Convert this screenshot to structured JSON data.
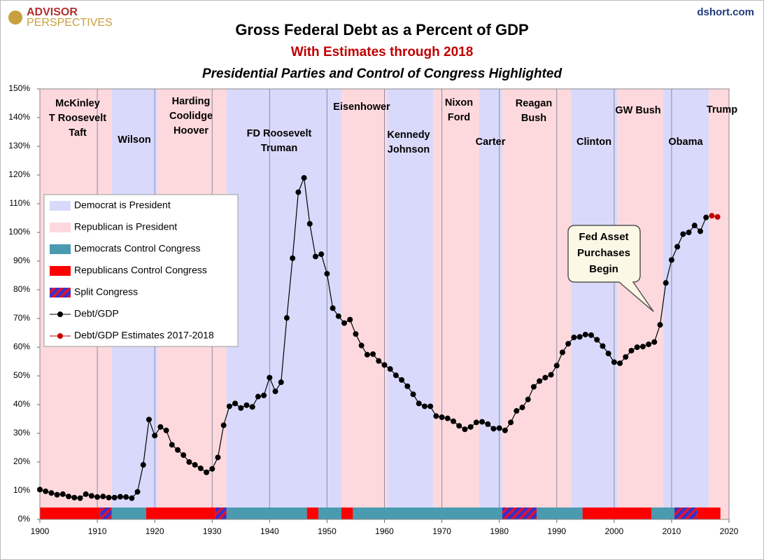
{
  "chart_data": {
    "type": "line",
    "logo": [
      "ADVISOR",
      "PERSPECTIVES"
    ],
    "source": "dshort.com",
    "title": "Gross Federal Debt as a Percent of GDP",
    "subtitle": "With Estimates through 2018",
    "subtitle2": "Presidential Parties and Control of Congress Highlighted",
    "xlim": [
      1900,
      2020
    ],
    "xticks": [
      1900,
      1910,
      1920,
      1930,
      1940,
      1950,
      1960,
      1970,
      1980,
      1990,
      2000,
      2010,
      2020
    ],
    "ylim": [
      0,
      150
    ],
    "yticks": [
      {
        "value": 0,
        "label": "0%"
      },
      {
        "value": 10,
        "label": "10%"
      },
      {
        "value": 20,
        "label": "20%"
      },
      {
        "value": 30,
        "label": "30%"
      },
      {
        "value": 40,
        "label": "40%"
      },
      {
        "value": 50,
        "label": "50%"
      },
      {
        "value": 60,
        "label": "60%"
      },
      {
        "value": 70,
        "label": "70%"
      },
      {
        "value": 80,
        "label": "80%"
      },
      {
        "value": 90,
        "label": "90%"
      },
      {
        "value": 100,
        "label": "100%"
      },
      {
        "value": 110,
        "label": "110%"
      },
      {
        "value": 120,
        "label": "120%"
      },
      {
        "value": 130,
        "label": "130%"
      },
      {
        "value": 140,
        "label": "140%"
      },
      {
        "value": 150,
        "label": "150%"
      }
    ],
    "xgrid": true,
    "bands": [
      {
        "name": "Democrat is President",
        "color": "#d9d9fb",
        "spans": [
          [
            1912.5,
            1920.5
          ],
          [
            1932.5,
            1952.5
          ],
          [
            1960.5,
            1968.5
          ],
          [
            1976.5,
            1980.5
          ],
          [
            1992.5,
            2000.5
          ],
          [
            2008.5,
            2016.5
          ]
        ]
      },
      {
        "name": "Republican is President",
        "color": "#fdd9dd",
        "spans": [
          [
            1900,
            1912.5
          ],
          [
            1920.5,
            1932.5
          ],
          [
            1952.5,
            1960.5
          ],
          [
            1968.5,
            1976.5
          ],
          [
            1980.5,
            1992.5
          ],
          [
            2000.5,
            2008.5
          ],
          [
            2016.5,
            2020
          ]
        ]
      }
    ],
    "congress": [
      {
        "name": "Democrats Control Congress",
        "color": "#4a9bb0",
        "spans": [
          [
            1912.5,
            1918.5
          ],
          [
            1932.5,
            1946.5
          ],
          [
            1948.5,
            1952.5
          ],
          [
            1954.5,
            1980.5
          ],
          [
            1986.5,
            1994.5
          ],
          [
            2006.5,
            2010.5
          ]
        ]
      },
      {
        "name": "Republicans Control Congress",
        "color": "#ff0000",
        "spans": [
          [
            1900,
            1910.5
          ],
          [
            1918.5,
            1930.5
          ],
          [
            1946.5,
            1948.5
          ],
          [
            1952.5,
            1954.5
          ],
          [
            1994.5,
            2006.5
          ],
          [
            2014.5,
            2018.5
          ]
        ]
      },
      {
        "name": "Split Congress",
        "color": "#3333cc",
        "spans": [
          [
            1910.5,
            1912.5
          ],
          [
            1930.5,
            1932.5
          ],
          [
            1980.5,
            1986.5
          ],
          [
            2010.5,
            2014.5
          ]
        ]
      }
    ],
    "presidents": [
      [
        "McKinley",
        "T Roosevelt",
        "Taft"
      ],
      [
        "Wilson"
      ],
      [
        "Harding",
        "Coolidge",
        "Hoover"
      ],
      [
        "FD Roosevelt",
        "Truman"
      ],
      [
        "Eisenhower"
      ],
      [
        "Kennedy",
        "Johnson"
      ],
      [
        "Nixon",
        "Ford"
      ],
      [
        "Carter"
      ],
      [
        "Reagan",
        "Bush"
      ],
      [
        "Clinton"
      ],
      [
        "GW Bush"
      ],
      [
        "Obama"
      ],
      [
        "Trump"
      ]
    ],
    "annotation": [
      "Fed Asset",
      "Purchases",
      "Begin"
    ],
    "series": [
      {
        "name": "Debt/GDP",
        "color": "#000000",
        "x": [
          1900,
          1901,
          1902,
          1903,
          1904,
          1905,
          1906,
          1907,
          1908,
          1909,
          1910,
          1911,
          1912,
          1913,
          1914,
          1915,
          1916,
          1917,
          1918,
          1919,
          1920,
          1921,
          1922,
          1923,
          1924,
          1925,
          1926,
          1927,
          1928,
          1929,
          1930,
          1931,
          1932,
          1933,
          1934,
          1935,
          1936,
          1937,
          1938,
          1939,
          1940,
          1941,
          1942,
          1943,
          1944,
          1945,
          1946,
          1947,
          1948,
          1949,
          1950,
          1951,
          1952,
          1953,
          1954,
          1955,
          1956,
          1957,
          1958,
          1959,
          1960,
          1961,
          1962,
          1963,
          1964,
          1965,
          1966,
          1967,
          1968,
          1969,
          1970,
          1971,
          1972,
          1973,
          1974,
          1975,
          1976,
          1977,
          1978,
          1979,
          1980,
          1981,
          1982,
          1983,
          1984,
          1985,
          1986,
          1987,
          1988,
          1989,
          1990,
          1991,
          1992,
          1993,
          1994,
          1995,
          1996,
          1997,
          1998,
          1999,
          2000,
          2001,
          2002,
          2003,
          2004,
          2005,
          2006,
          2007,
          2008,
          2009,
          2010,
          2011,
          2012,
          2013,
          2014,
          2015,
          2016
        ],
        "values": [
          10.4,
          9.8,
          9.2,
          8.6,
          8.8,
          8.0,
          7.6,
          7.4,
          8.8,
          8.2,
          7.8,
          8.0,
          7.6,
          7.6,
          7.9,
          7.8,
          7.4,
          9.6,
          19.0,
          34.8,
          29.2,
          32.2,
          31.0,
          26.0,
          24.2,
          22.4,
          20.0,
          19.0,
          17.8,
          16.4,
          17.6,
          21.6,
          32.8,
          39.4,
          40.4,
          38.8,
          39.8,
          39.2,
          42.8,
          43.2,
          49.4,
          44.6,
          47.8,
          70.2,
          91.0,
          114.0,
          119.0,
          103.0,
          91.6,
          92.4,
          85.6,
          73.6,
          70.8,
          68.4,
          69.6,
          64.6,
          60.6,
          57.4,
          57.6,
          55.2,
          53.8,
          52.4,
          50.2,
          48.6,
          46.4,
          43.6,
          40.4,
          39.4,
          39.4,
          36.0,
          35.6,
          35.2,
          34.2,
          32.6,
          31.4,
          32.2,
          33.8,
          34.0,
          33.2,
          31.6,
          31.8,
          31.0,
          33.8,
          37.8,
          39.0,
          41.8,
          46.2,
          48.2,
          49.4,
          50.4,
          53.6,
          58.2,
          61.2,
          63.4,
          63.6,
          64.4,
          64.2,
          62.6,
          60.4,
          57.8,
          54.8,
          54.4,
          56.6,
          58.8,
          60.0,
          60.2,
          61.0,
          61.8,
          67.8,
          82.4,
          90.4,
          95.0,
          99.4,
          100.0,
          102.4,
          100.4,
          105.2
        ]
      },
      {
        "name": "Debt/GDP Estimates 2017-2018",
        "color": "#c00000",
        "x": [
          2017,
          2018
        ],
        "values": [
          105.8,
          105.4
        ]
      }
    ]
  }
}
